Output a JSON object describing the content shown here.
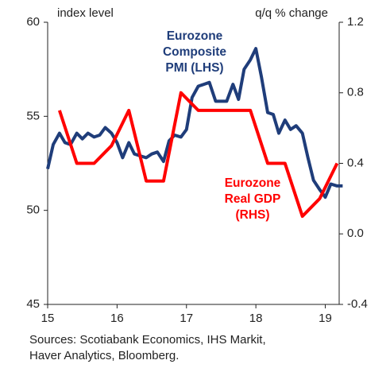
{
  "chart_data": {
    "type": "line",
    "y_axis_label": "index level",
    "y2_axis_label": "q/q % change",
    "source": "Sources: Scotiabank Economics, IHS Markit, Haver Analytics, Bloomberg.",
    "xlim": [
      15,
      19.2
    ],
    "xticks": [
      15,
      16,
      17,
      18,
      19
    ],
    "ylim": [
      45,
      60
    ],
    "yticks": [
      45,
      50,
      55,
      60
    ],
    "y2lim": [
      -0.4,
      1.2
    ],
    "y2ticks": [
      -0.4,
      {
        "value": 0,
        "label": "0.0"
      },
      0.4,
      0.8,
      1.2
    ],
    "series": [
      {
        "name": "Eurozone Composite PMI (LHS)",
        "color": "#1f3d7a",
        "x": [
          15,
          15.08,
          15.17,
          15.25,
          15.33,
          15.42,
          15.5,
          15.58,
          15.67,
          15.75,
          15.83,
          15.92,
          16,
          16.08,
          16.17,
          16.25,
          16.33,
          16.42,
          16.5,
          16.58,
          16.67,
          16.75,
          16.83,
          16.92,
          17,
          17.08,
          17.17,
          17.25,
          17.33,
          17.42,
          17.5,
          17.58,
          17.67,
          17.75,
          17.83,
          17.92,
          18,
          18.08,
          18.17,
          18.25,
          18.33,
          18.42,
          18.5,
          18.58,
          18.67,
          18.75,
          18.83,
          18.92,
          19,
          19.08,
          19.17,
          19.25
        ],
        "values": [
          52.2,
          53.5,
          54.1,
          53.6,
          53.5,
          54.1,
          53.8,
          54.1,
          53.9,
          54.0,
          54.4,
          54.1,
          53.6,
          52.8,
          53.6,
          53.0,
          52.9,
          52.8,
          53.0,
          53.1,
          52.6,
          53.7,
          54.0,
          53.9,
          54.3,
          56.0,
          56.6,
          56.7,
          56.8,
          55.8,
          55.8,
          55.8,
          56.7,
          55.9,
          57.5,
          58.0,
          58.6,
          57.1,
          55.2,
          55.1,
          54.1,
          54.8,
          54.3,
          54.5,
          54.1,
          52.8,
          51.6,
          51.1,
          50.7,
          51.4,
          51.3,
          51.3
        ]
      },
      {
        "name": "Eurozone Real GDP (RHS)",
        "color": "#ff0000",
        "axis": "y2",
        "x": [
          15.17,
          15.42,
          15.67,
          15.92,
          16.17,
          16.42,
          16.67,
          16.92,
          17.17,
          17.42,
          17.67,
          17.92,
          18.17,
          18.42,
          18.67,
          18.92,
          19.17
        ],
        "values": [
          0.7,
          0.4,
          0.4,
          0.5,
          0.7,
          0.3,
          0.3,
          0.8,
          0.7,
          0.7,
          0.7,
          0.7,
          0.4,
          0.4,
          0.1,
          0.2,
          0.4
        ]
      }
    ]
  }
}
